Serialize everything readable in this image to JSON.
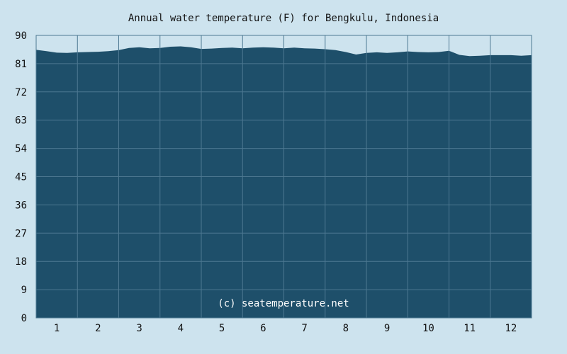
{
  "chart_data": {
    "type": "area",
    "title": "Annual water temperature (F) for Bengkulu, Indonesia",
    "watermark": "(c) seatemperature.net",
    "xlabel": "",
    "ylabel": "",
    "x_ticks": [
      "1",
      "2",
      "3",
      "4",
      "5",
      "6",
      "7",
      "8",
      "9",
      "10",
      "11",
      "12"
    ],
    "y_ticks": [
      0,
      9,
      18,
      27,
      36,
      45,
      54,
      63,
      72,
      81,
      90
    ],
    "xlim": [
      0.5,
      12.5
    ],
    "ylim": [
      0,
      90
    ],
    "grid": true,
    "colors": {
      "background": "#cde3ee",
      "plot_fill": "#1e4f6a",
      "grid": "#4d7891",
      "text": "#111111",
      "watermark": "#ffffff"
    },
    "series": [
      {
        "x": [
          0.5,
          0.75,
          1.0,
          1.25,
          1.5,
          1.75,
          2.0,
          2.25,
          2.5,
          2.75,
          3.0,
          3.25,
          3.5,
          3.75,
          4.0,
          4.25,
          4.5,
          4.75,
          5.0,
          5.25,
          5.5,
          5.75,
          6.0,
          6.25,
          6.5,
          6.75,
          7.0,
          7.25,
          7.5,
          7.75,
          8.0,
          8.25,
          8.5,
          8.75,
          9.0,
          9.25,
          9.5,
          9.75,
          10.0,
          10.25,
          10.5,
          10.75,
          11.0,
          11.25,
          11.5,
          11.75,
          12.0,
          12.25,
          12.5
        ],
        "values": [
          85.4,
          85.0,
          84.5,
          84.4,
          84.6,
          84.7,
          84.8,
          85.0,
          85.3,
          86.0,
          86.2,
          85.9,
          86.0,
          86.4,
          86.5,
          86.2,
          85.7,
          85.8,
          86.0,
          86.1,
          85.9,
          86.1,
          86.2,
          86.1,
          85.9,
          86.1,
          85.9,
          85.8,
          85.6,
          85.3,
          84.7,
          83.9,
          84.4,
          84.6,
          84.4,
          84.6,
          84.9,
          84.7,
          84.6,
          84.7,
          85.1,
          83.8,
          83.4,
          83.5,
          83.7,
          83.7,
          83.7,
          83.5,
          83.7
        ]
      }
    ]
  }
}
